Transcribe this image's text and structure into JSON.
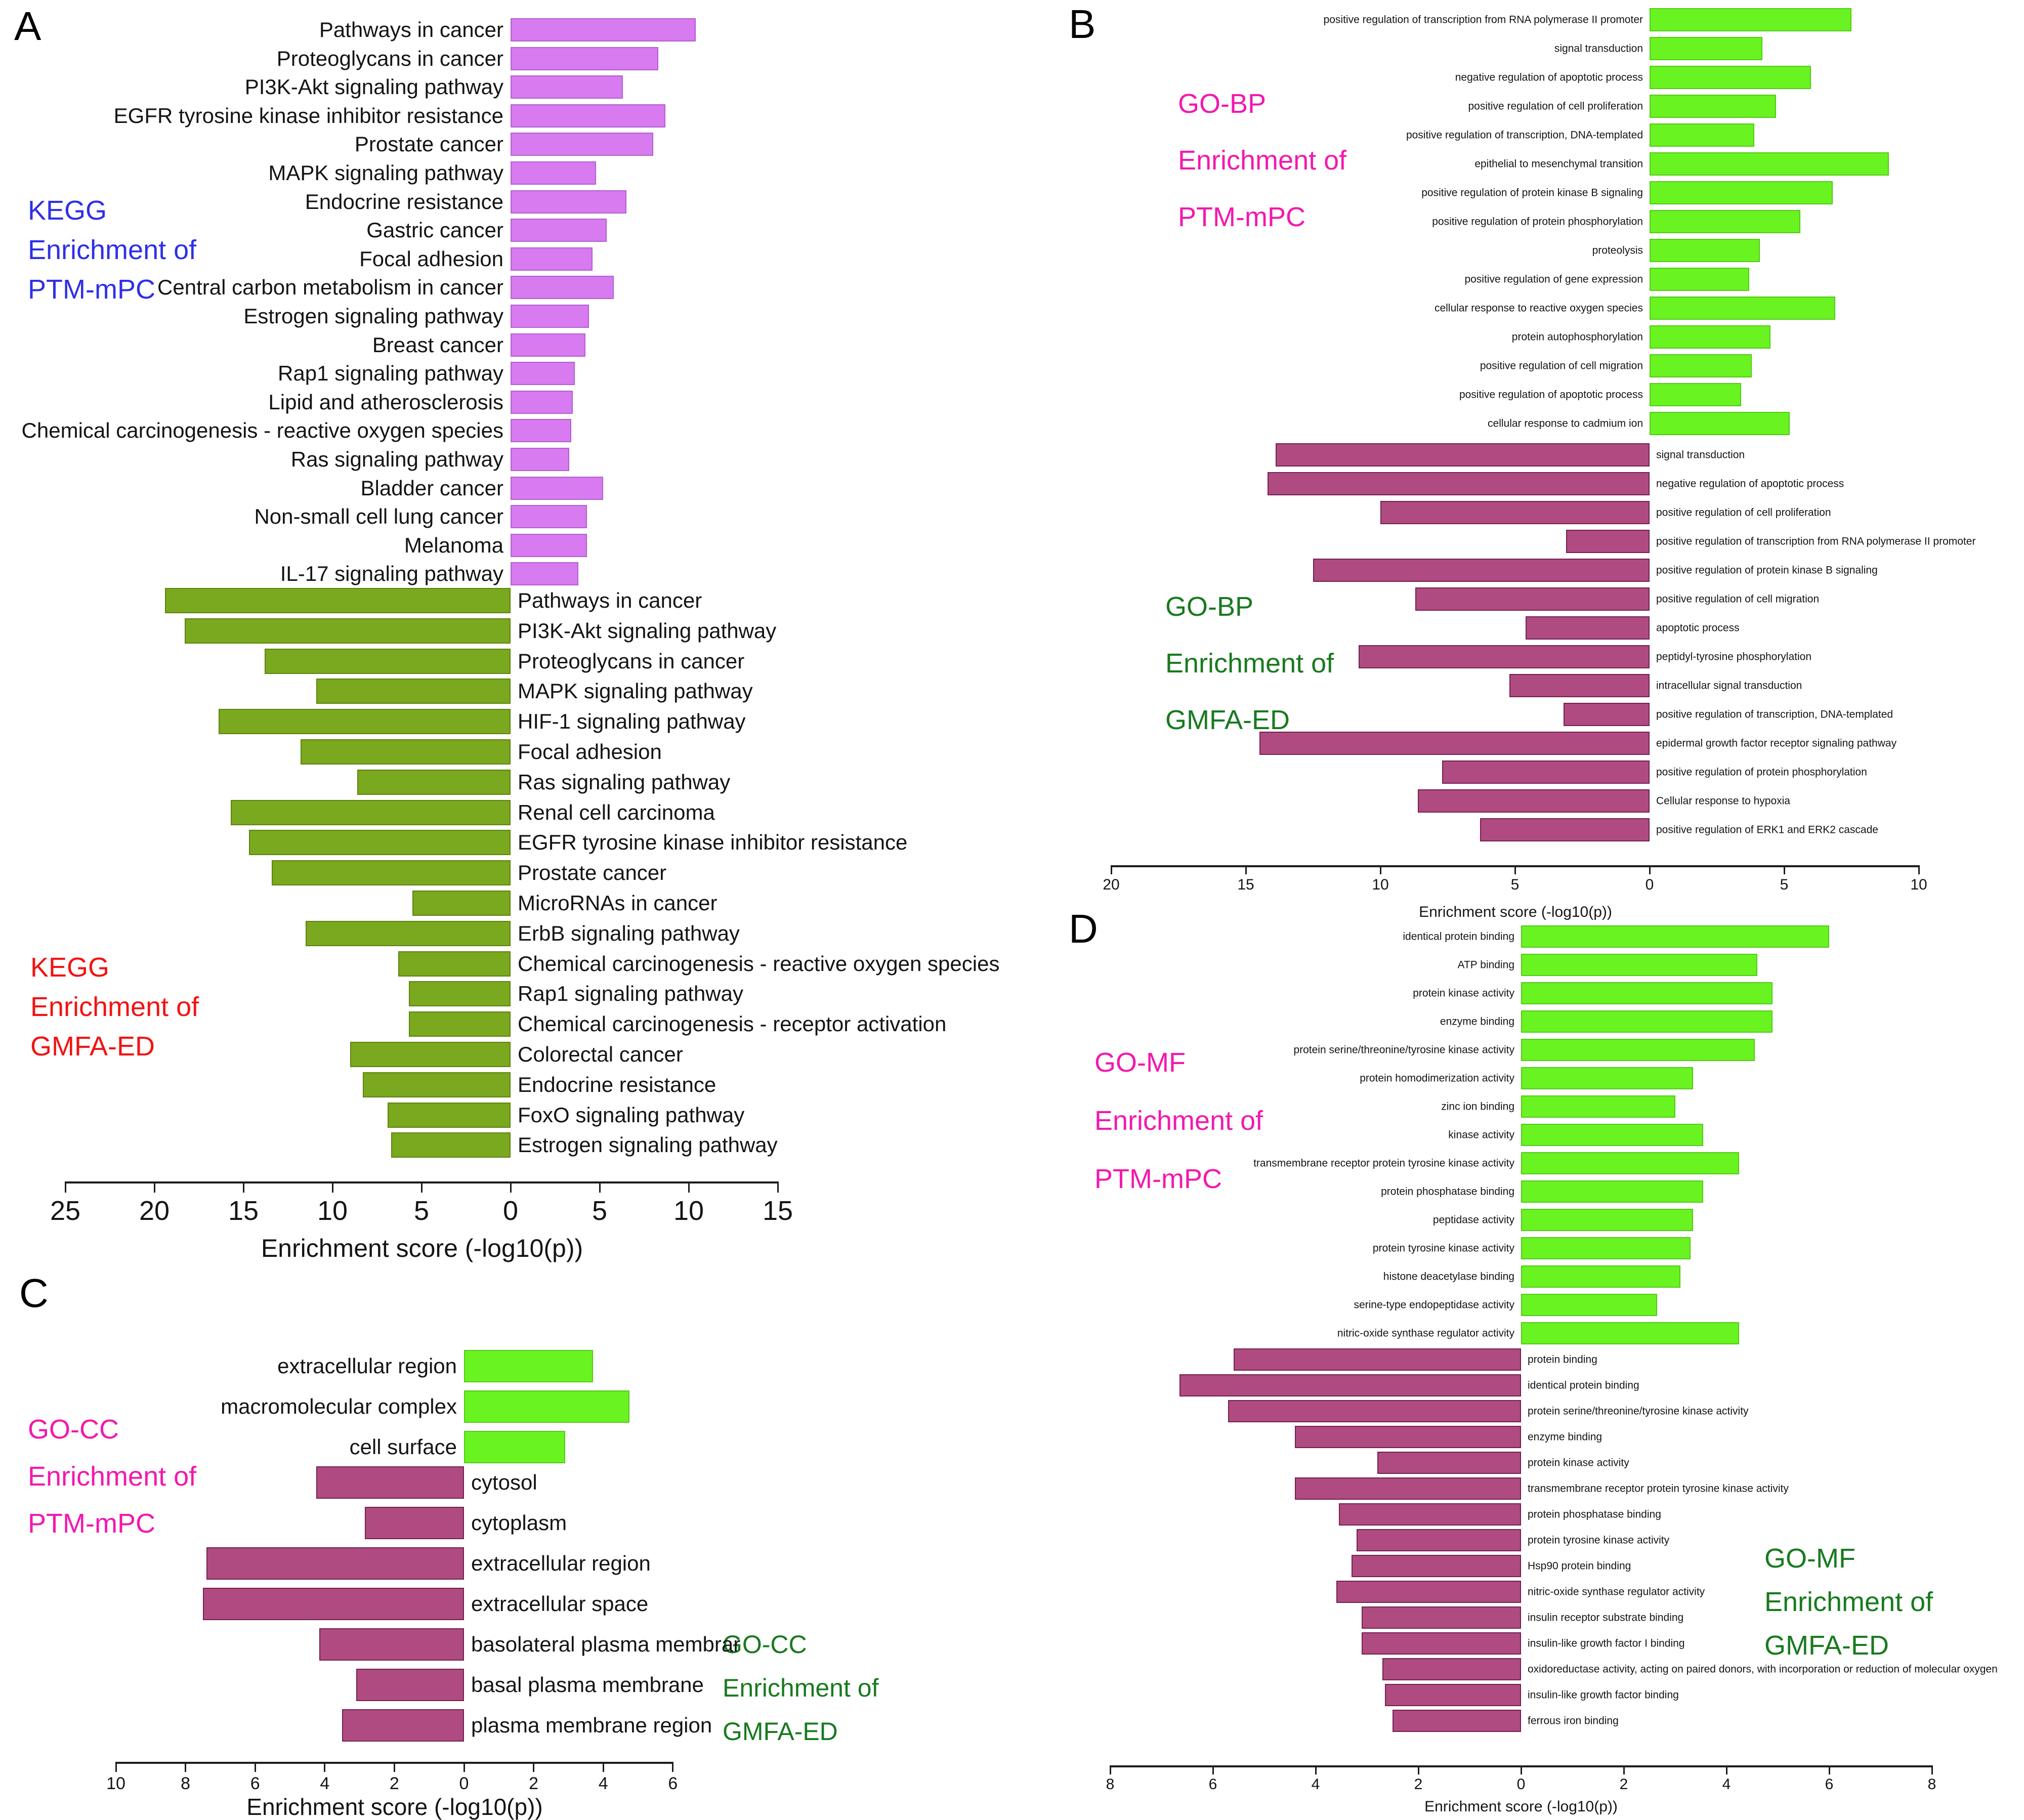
{
  "figure": {
    "background": "#ffffff",
    "axis_label": "Enrichment score (-log10(p))"
  },
  "chart_data": [
    {
      "panel": "A",
      "type": "bar",
      "orientation": "diverging-horizontal",
      "xlabel": "Enrichment score (-log10(p))",
      "axis_range": [
        -25,
        15
      ],
      "tick_values": [
        -25,
        -20,
        -15,
        -10,
        -5,
        0,
        5,
        10,
        15
      ],
      "grid": false,
      "legend": false,
      "title_up": {
        "lines": [
          "KEGG",
          "Enrichment of",
          "PTM-mPC"
        ],
        "color": "#2f2fe8"
      },
      "title_down": {
        "lines": [
          "KEGG",
          "Enrichment of",
          "GMFA-ED"
        ],
        "color": "#f31212"
      },
      "series": [
        {
          "name": "KEGG Enrichment of PTM-mPC",
          "direction": "right",
          "color": "#d87af0",
          "border": "#b25fd0",
          "categories": [
            "Pathways in cancer",
            "Proteoglycans in cancer",
            "PI3K-Akt signaling pathway",
            "EGFR tyrosine kinase inhibitor resistance",
            "Prostate cancer",
            "MAPK signaling pathway",
            "Endocrine resistance",
            "Gastric cancer",
            "Focal adhesion",
            "Central carbon metabolism in cancer",
            "Estrogen signaling pathway",
            "Breast cancer",
            "Rap1 signaling pathway",
            "Lipid and atherosclerosis",
            "Chemical carcinogenesis - reactive oxygen species",
            "Ras signaling pathway",
            "Bladder cancer",
            "Non-small cell lung cancer",
            "Melanoma",
            "IL-17 signaling pathway"
          ],
          "values": [
            10.4,
            8.3,
            6.3,
            8.7,
            8.0,
            4.8,
            6.5,
            5.4,
            4.6,
            5.8,
            4.4,
            4.2,
            3.6,
            3.5,
            3.4,
            3.3,
            5.2,
            4.3,
            4.3,
            3.8
          ]
        },
        {
          "name": "KEGG Enrichment of GMFA-ED",
          "direction": "left",
          "color": "#7aa81e",
          "border": "#5e8410",
          "categories": [
            "Pathways in cancer",
            "PI3K-Akt signaling pathway",
            "Proteoglycans in cancer",
            "MAPK signaling pathway",
            "HIF-1 signaling pathway",
            "Focal adhesion",
            "Ras signaling pathway",
            "Renal cell carcinoma",
            "EGFR tyrosine kinase inhibitor resistance",
            "Prostate cancer",
            "MicroRNAs in cancer",
            "ErbB signaling pathway",
            "Chemical carcinogenesis - reactive oxygen species",
            "Rap1 signaling pathway",
            "Chemical carcinogenesis - receptor activation",
            "Colorectal cancer",
            "Endocrine resistance",
            "FoxO signaling pathway",
            "Estrogen signaling pathway"
          ],
          "values": [
            19.4,
            18.3,
            13.8,
            10.9,
            16.4,
            11.8,
            8.6,
            15.7,
            14.7,
            13.4,
            5.5,
            11.5,
            6.3,
            5.7,
            5.7,
            9.0,
            8.3,
            6.9,
            6.7
          ]
        }
      ]
    },
    {
      "panel": "B",
      "type": "bar",
      "orientation": "diverging-horizontal",
      "xlabel": "Enrichment score (-log10(p))",
      "axis_range": [
        -20,
        10
      ],
      "tick_values": [
        -20,
        -15,
        -10,
        -5,
        0,
        5,
        10
      ],
      "grid": false,
      "legend": false,
      "title_up": {
        "lines": [
          "GO-BP",
          "Enrichment of",
          "PTM-mPC"
        ],
        "color": "#f318ae"
      },
      "title_down": {
        "lines": [
          "GO-BP",
          "Enrichment of",
          "GMFA-ED"
        ],
        "color": "#187a1e"
      },
      "series": [
        {
          "name": "GO-BP Enrichment of PTM-mPC",
          "direction": "right",
          "color": "#69f321",
          "border": "#54cb17",
          "categories": [
            "positive regulation of transcription from RNA polymerase II promoter",
            "signal transduction",
            "negative regulation of apoptotic process",
            "positive regulation of cell proliferation",
            "positive regulation of transcription, DNA-templated",
            "epithelial to mesenchymal transition",
            "positive regulation of protein kinase B signaling",
            "positive regulation of protein phosphorylation",
            "proteolysis",
            "positive regulation of gene expression",
            "cellular response to reactive oxygen species",
            "protein autophosphorylation",
            "positive regulation of cell migration",
            "positive regulation of apoptotic process",
            "cellular response to cadmium ion"
          ],
          "values": [
            7.5,
            4.2,
            6.0,
            4.7,
            3.9,
            8.9,
            6.8,
            5.6,
            4.1,
            3.7,
            6.9,
            4.5,
            3.8,
            3.4,
            5.2
          ]
        },
        {
          "name": "GO-BP Enrichment of GMFA-ED",
          "direction": "left",
          "color": "#b04b81",
          "border": "#732150",
          "categories": [
            "signal transduction",
            "negative regulation of apoptotic process",
            "positive regulation of cell proliferation",
            "positive regulation of transcription from RNA polymerase II promoter",
            "positive regulation of protein kinase B signaling",
            "positive regulation of cell migration",
            "apoptotic process",
            "peptidyl-tyrosine phosphorylation",
            "intracellular signal transduction",
            "positive regulation of transcription, DNA-templated",
            "epidermal growth factor receptor signaling pathway",
            "positive regulation of protein phosphorylation",
            "Cellular response to hypoxia",
            "positive regulation of ERK1 and ERK2 cascade"
          ],
          "values": [
            13.9,
            14.2,
            10.0,
            3.1,
            12.5,
            8.7,
            4.6,
            10.8,
            5.2,
            3.2,
            14.5,
            7.7,
            8.6,
            6.3
          ]
        }
      ]
    },
    {
      "panel": "C",
      "type": "bar",
      "orientation": "diverging-horizontal",
      "xlabel": "Enrichment score (-log10(p))",
      "axis_range": [
        -10,
        6
      ],
      "tick_values": [
        -10,
        -8,
        -6,
        -4,
        -2,
        0,
        2,
        4,
        6
      ],
      "grid": false,
      "legend": false,
      "title_up": {
        "lines": [
          "GO-CC",
          "Enrichment of",
          "PTM-mPC"
        ],
        "color": "#f318ae"
      },
      "title_down": {
        "lines": [
          "GO-CC",
          "Enrichment of",
          "GMFA-ED"
        ],
        "color": "#187a1e"
      },
      "series": [
        {
          "name": "GO-CC Enrichment of PTM-mPC",
          "direction": "right",
          "color": "#69f321",
          "border": "#54cb17",
          "categories": [
            "extracellular region",
            "macromolecular complex",
            "cell surface"
          ],
          "values": [
            3.7,
            4.75,
            2.9
          ]
        },
        {
          "name": "GO-CC Enrichment of GMFA-ED",
          "direction": "left",
          "color": "#b04b81",
          "border": "#732150",
          "categories": [
            "cytosol",
            "cytoplasm",
            "extracellular region",
            "extracellular space",
            "basolateral plasma membrar",
            "basal plasma membrane",
            "plasma membrane region"
          ],
          "values": [
            4.25,
            2.85,
            7.4,
            7.5,
            4.15,
            3.1,
            3.5
          ]
        }
      ]
    },
    {
      "panel": "D",
      "type": "bar",
      "orientation": "diverging-horizontal",
      "xlabel": "Enrichment score (-log10(p))",
      "axis_range": [
        -8,
        8
      ],
      "tick_values": [
        -8,
        -6,
        -4,
        -2,
        0,
        2,
        4,
        6,
        8
      ],
      "grid": false,
      "legend": false,
      "title_up": {
        "lines": [
          "GO-MF",
          "Enrichment of",
          "PTM-mPC"
        ],
        "color": "#f318ae"
      },
      "title_down": {
        "lines": [
          "GO-MF",
          "Enrichment of",
          "GMFA-ED"
        ],
        "color": "#187a1e"
      },
      "series": [
        {
          "name": "GO-MF Enrichment of PTM-mPC",
          "direction": "right",
          "color": "#69f321",
          "border": "#54cb17",
          "categories": [
            "identical protein binding",
            "ATP binding",
            "protein kinase activity",
            "enzyme binding",
            "protein serine/threonine/tyrosine kinase activity",
            "protein homodimerization activity",
            "zinc ion binding",
            "kinase activity",
            "transmembrane receptor protein tyrosine kinase activity",
            "protein phosphatase binding",
            "peptidase activity",
            "protein tyrosine kinase activity",
            "histone deacetylase binding",
            "serine-type endopeptidase activity",
            "nitric-oxide synthase regulator activity"
          ],
          "values": [
            6.0,
            4.6,
            4.9,
            4.9,
            4.55,
            3.35,
            3.0,
            3.55,
            4.25,
            3.55,
            3.35,
            3.3,
            3.1,
            2.65,
            4.25
          ]
        },
        {
          "name": "GO-MF Enrichment of GMFA-ED",
          "direction": "left",
          "color": "#b04b81",
          "border": "#732150",
          "categories": [
            "protein binding",
            "identical protein binding",
            "protein serine/threonine/tyrosine kinase activity",
            "enzyme binding",
            "protein kinase activity",
            "transmembrane receptor protein tyrosine kinase activity",
            "protein phosphatase binding",
            "protein tyrosine kinase activity",
            "Hsp90 protein binding",
            "nitric-oxide synthase regulator activity",
            "insulin receptor substrate binding",
            "insulin-like growth factor I binding",
            "oxidoreductase activity, acting on paired donors, with incorporation or reduction of molecular oxygen",
            "insulin-like growth factor binding",
            "ferrous iron binding"
          ],
          "values": [
            5.6,
            6.65,
            5.7,
            4.4,
            2.8,
            4.4,
            3.55,
            3.2,
            3.3,
            3.6,
            3.1,
            3.1,
            2.7,
            2.65,
            2.5
          ]
        }
      ]
    }
  ]
}
